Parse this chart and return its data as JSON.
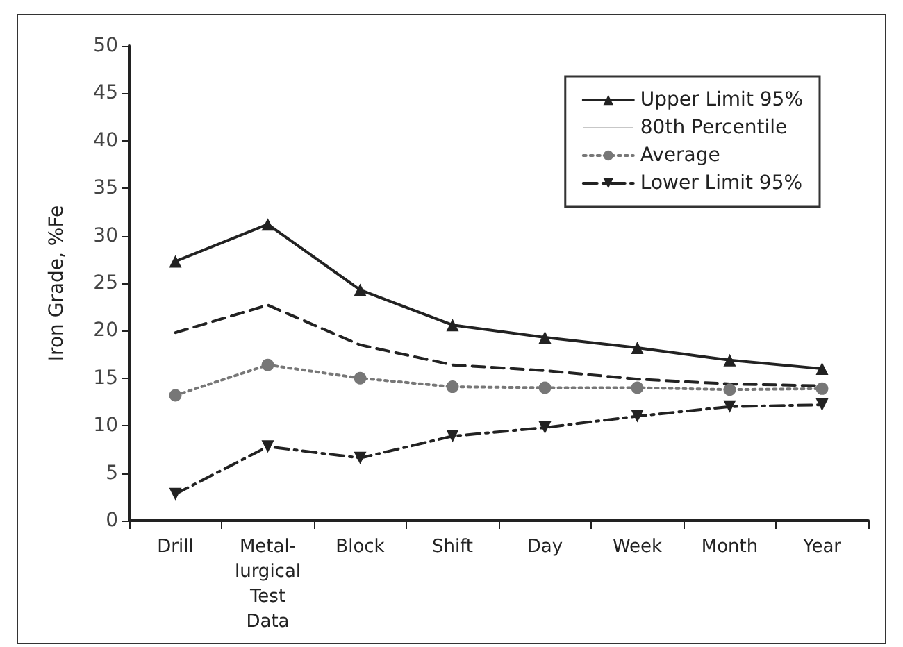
{
  "chart_data": {
    "type": "line",
    "ylabel": "Iron Grade, %Fe",
    "categories": [
      "Drill",
      "Metal-\nlurgical\nTest\nData",
      "Block",
      "Shift",
      "Day",
      "Week",
      "Month",
      "Year"
    ],
    "series": [
      {
        "name": "Upper Limit 95%",
        "color": "#222222",
        "marker": "triangle",
        "line_style": "solid",
        "values": [
          27.3,
          31.2,
          24.3,
          20.6,
          19.3,
          18.2,
          16.9,
          16.0
        ]
      },
      {
        "name": "80th Percentile",
        "color": "#222222",
        "marker": "none",
        "line_style": "dashed",
        "values": [
          19.8,
          22.7,
          18.5,
          16.4,
          15.8,
          14.9,
          14.4,
          14.2
        ]
      },
      {
        "name": "Average",
        "color": "#777777",
        "marker": "circle",
        "line_style": "dotted",
        "values": [
          13.2,
          16.4,
          15.0,
          14.1,
          14.0,
          14.0,
          13.8,
          13.9
        ]
      },
      {
        "name": "Lower Limit 95%",
        "color": "#222222",
        "marker": "triangle-down",
        "line_style": "dashdot",
        "values": [
          2.8,
          7.8,
          6.6,
          8.9,
          9.8,
          11.0,
          12.0,
          12.2
        ]
      }
    ],
    "ylim": [
      0,
      50
    ],
    "yticks": [
      0,
      5,
      10,
      15,
      20,
      25,
      30,
      35,
      40,
      45,
      50
    ],
    "grid": false,
    "legend": "top right"
  }
}
